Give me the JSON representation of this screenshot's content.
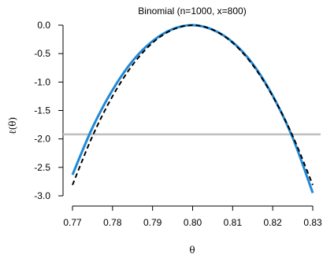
{
  "chart_data": {
    "type": "line",
    "title": "Binomial (n=1000, x=800)",
    "xlabel": "θ",
    "ylabel": "ℓ(θ)",
    "xlim": [
      0.77,
      0.83
    ],
    "ylim": [
      -3.0,
      0.0
    ],
    "x_ticks": [
      0.77,
      0.78,
      0.79,
      0.8,
      0.81,
      0.82,
      0.83
    ],
    "x_tick_labels": [
      "0.77",
      "0.78",
      "0.79",
      "0.80",
      "0.81",
      "0.82",
      "0.83"
    ],
    "y_ticks": [
      0.0,
      -0.5,
      -1.0,
      -1.5,
      -2.0,
      -2.5,
      -3.0
    ],
    "y_tick_labels": [
      "0.0",
      "-0.5",
      "-1.0",
      "-1.5",
      "-2.0",
      "-2.5",
      "-3.0"
    ],
    "grid": false,
    "series": [
      {
        "color": "#1f88d6",
        "dash": "solid",
        "x": [
          0.77,
          0.775,
          0.78,
          0.785,
          0.79,
          0.795,
          0.8,
          0.805,
          0.81,
          0.815,
          0.82,
          0.825,
          0.83
        ],
        "y": [
          -2.63,
          -1.8,
          -1.14,
          -0.63,
          -0.28,
          -0.07,
          0.0,
          -0.08,
          -0.3,
          -0.68,
          -1.24,
          -1.98,
          -2.95
        ]
      },
      {
        "color": "#000000",
        "dash": "dashed",
        "x": [
          0.77,
          0.775,
          0.78,
          0.785,
          0.79,
          0.795,
          0.8,
          0.805,
          0.81,
          0.815,
          0.82,
          0.825,
          0.83
        ],
        "y": [
          -2.81,
          -1.95,
          -1.25,
          -0.7,
          -0.31,
          -0.08,
          0.0,
          -0.08,
          -0.31,
          -0.7,
          -1.25,
          -1.95,
          -2.81
        ]
      }
    ],
    "hlines": [
      {
        "y": -1.92,
        "color": "#bfbfbf"
      }
    ]
  }
}
